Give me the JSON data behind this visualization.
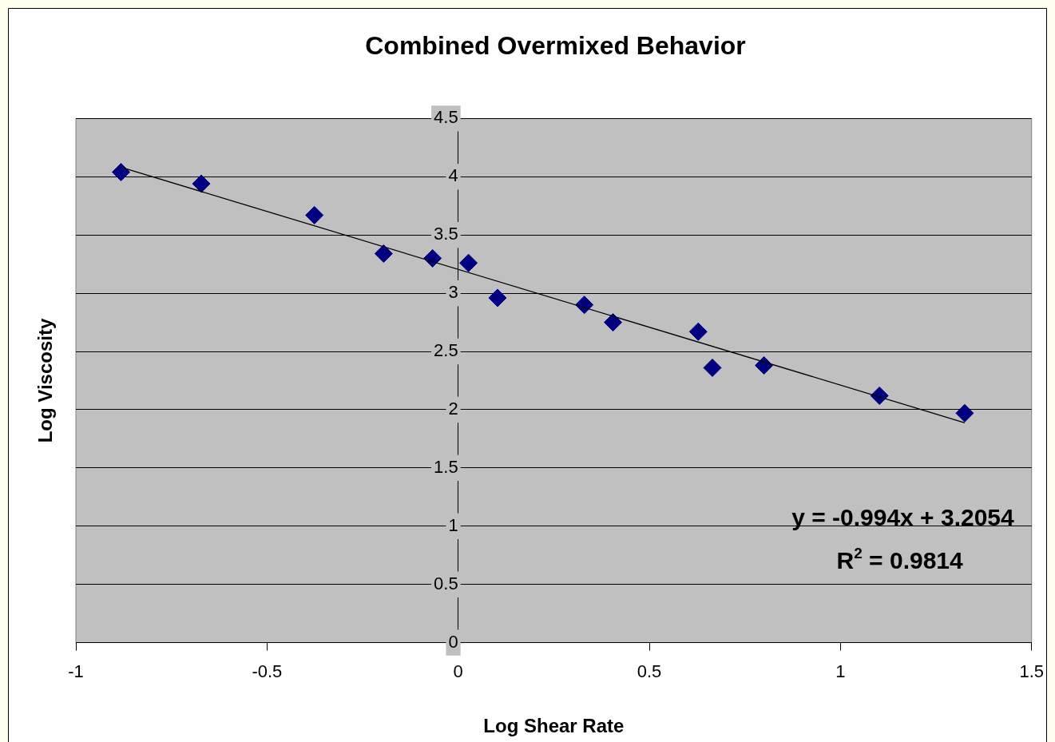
{
  "chart_data": {
    "type": "scatter",
    "title": "Combined Overmixed Behavior",
    "xlabel": "Log Shear Rate",
    "ylabel": "Log Viscosity",
    "x": [
      -0.882,
      -0.672,
      -0.376,
      -0.195,
      -0.067,
      0.027,
      0.103,
      0.33,
      0.405,
      0.628,
      0.665,
      0.8,
      1.102,
      1.325
    ],
    "series": [
      {
        "color": "#000080",
        "values": [
          4.04,
          3.94,
          3.67,
          3.34,
          3.3,
          3.26,
          2.96,
          2.9,
          2.75,
          2.67,
          2.36,
          2.38,
          2.12,
          1.97
        ],
        "marker": "diamond"
      },
      {
        "type": "line",
        "color": "#000000",
        "x": [
          -0.882,
          1.325
        ],
        "values": [
          4.082,
          1.888
        ],
        "marker": "none"
      }
    ],
    "xlim": [
      -1,
      1.5
    ],
    "xticks": [
      -1,
      -0.5,
      0,
      0.5,
      1,
      1.5
    ],
    "ylim": [
      0,
      4.5
    ],
    "yticks": [
      0,
      0.5,
      1,
      1.5,
      2,
      2.5,
      3,
      3.5,
      4,
      4.5
    ],
    "grid": "y",
    "legend": false,
    "annotations": [
      "y = -0.994x + 3.2054",
      "R$^{2}$ = 0.9814"
    ]
  }
}
